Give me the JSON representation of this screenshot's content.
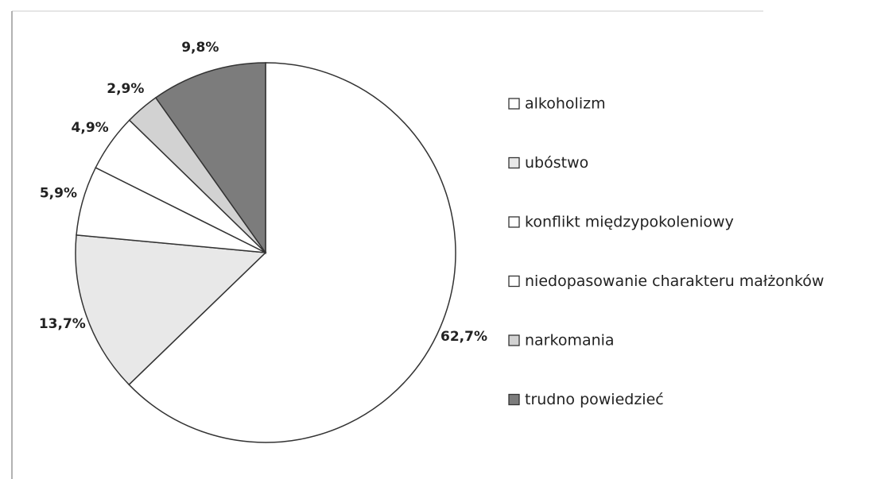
{
  "chart_data": {
    "type": "pie",
    "categories": [
      "alkoholizm",
      "ubóstwo",
      "konflikt międzypokoleniowy",
      "niedopasowanie charakteru małżonków",
      "narkomania",
      "trudno powiedzieć"
    ],
    "values": [
      62.7,
      13.7,
      5.9,
      4.9,
      2.9,
      9.8
    ],
    "value_labels": [
      "62,7%",
      "13,7%",
      "5,9%",
      "4,9%",
      "2,9%",
      "9,8%"
    ],
    "colors": [
      "#ffffff",
      "#e8e8e8",
      "#ffffff",
      "#ffffff",
      "#d2d2d2",
      "#7c7c7c"
    ],
    "legend": "right"
  }
}
